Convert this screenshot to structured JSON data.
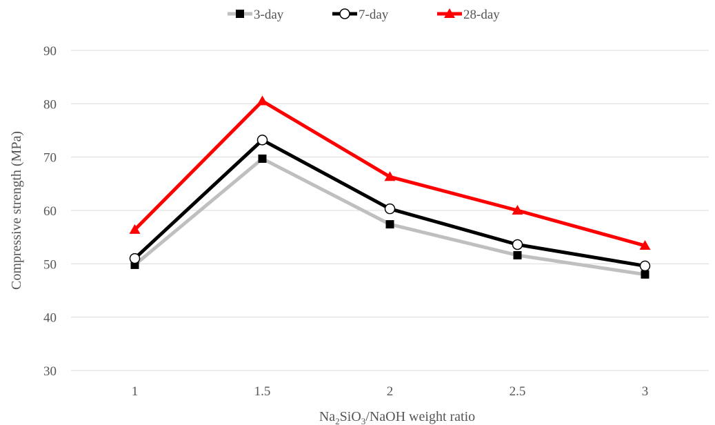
{
  "chart_data": {
    "type": "line",
    "title": "",
    "xlabel": {
      "parts": [
        "Na",
        "2",
        "SiO",
        "3",
        "/NaOH weight ratio"
      ]
    },
    "ylabel": "Compressive strength (MPa)",
    "x": [
      1,
      1.5,
      2,
      2.5,
      3
    ],
    "x_tick_labels": [
      "1",
      "1.5",
      "2",
      "2.5",
      "3"
    ],
    "ylim": [
      30,
      90
    ],
    "y_ticks": [
      30,
      40,
      50,
      60,
      70,
      80,
      90
    ],
    "grid": "horizontal",
    "legend_position": "top",
    "series": [
      {
        "name": "3-day",
        "values": [
          49.8,
          69.7,
          57.4,
          51.6,
          48.0
        ],
        "color": "#bfbfbf",
        "marker": "square-icon",
        "marker_color": "#000000"
      },
      {
        "name": "7-day",
        "values": [
          51.0,
          73.2,
          60.3,
          53.6,
          49.6
        ],
        "color": "#000000",
        "marker": "circle-icon",
        "marker_color": "#ffffff"
      },
      {
        "name": "28-day",
        "values": [
          56.4,
          80.5,
          66.3,
          60.0,
          53.4
        ],
        "color": "#ff0000",
        "marker": "triangle-icon",
        "marker_color": "#ff0000"
      }
    ]
  }
}
